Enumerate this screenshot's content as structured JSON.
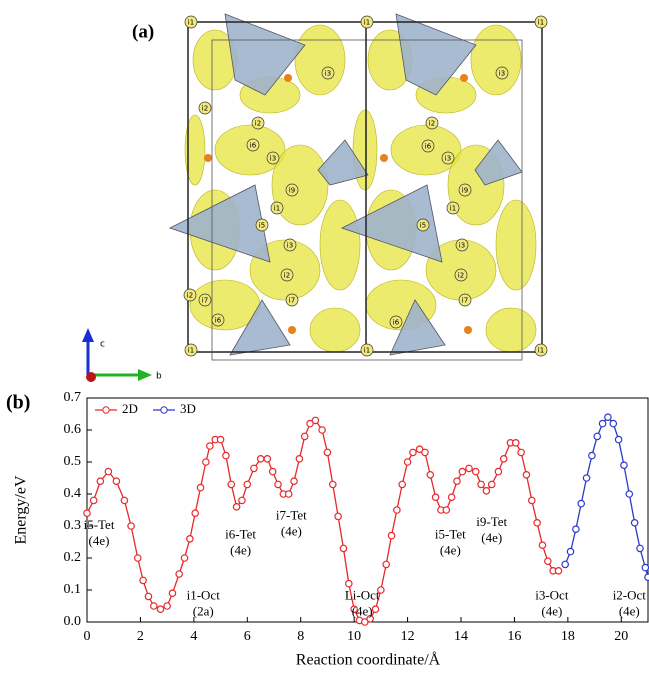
{
  "panel_a": {
    "label": "(a)",
    "axis_labels": [
      "c",
      "b"
    ],
    "atom_labels": [
      "i1",
      "i1",
      "i1",
      "i1",
      "i1",
      "i1",
      "i2",
      "i3",
      "i6",
      "i1",
      "i5",
      "i9",
      "i3",
      "i2",
      "i7",
      "i3",
      "i2",
      "i6",
      "i7",
      "i2",
      "i3",
      "i2",
      "i6",
      "i3",
      "i1",
      "i9",
      "i5",
      "i3",
      "i2",
      "i7",
      "i6"
    ]
  },
  "chart_data": {
    "type": "line",
    "panel_label": "(b)",
    "x_label": "Reaction coordinate/Å",
    "y_label": "Energy/eV",
    "xlim": [
      0,
      21
    ],
    "ylim": [
      0,
      0.7
    ],
    "xticks": [
      0,
      2,
      4,
      6,
      8,
      10,
      12,
      14,
      16,
      18,
      20
    ],
    "yticks": [
      {
        "value": 0,
        "label": "0.0"
      },
      0.1,
      0.2,
      0.3,
      0.4,
      0.5,
      0.6,
      0.7
    ],
    "legend": "upper left",
    "series": [
      {
        "name": "2D",
        "color": "#e8282b",
        "x": [
          0,
          0.25,
          0.5,
          0.8,
          1.1,
          1.4,
          1.65,
          1.9,
          2.1,
          2.3,
          2.5,
          2.75,
          3.0,
          3.2,
          3.45,
          3.65,
          3.85,
          4.05,
          4.25,
          4.45,
          4.6,
          4.8,
          5.0,
          5.2,
          5.4,
          5.6,
          5.8,
          6.0,
          6.25,
          6.5,
          6.75,
          6.95,
          7.15,
          7.35,
          7.55,
          7.75,
          7.95,
          8.15,
          8.35,
          8.55,
          8.8,
          9.0,
          9.2,
          9.4,
          9.6,
          9.8,
          10.0,
          10.2,
          10.4,
          10.6,
          10.8,
          11.0,
          11.2,
          11.4,
          11.6,
          11.8,
          12.0,
          12.2,
          12.45,
          12.65,
          12.85,
          13.05,
          13.25,
          13.45,
          13.65,
          13.85,
          14.05,
          14.3,
          14.55,
          14.75,
          14.95,
          15.15,
          15.4,
          15.6,
          15.85,
          16.05,
          16.25,
          16.45,
          16.65,
          16.85,
          17.05,
          17.25,
          17.45,
          17.65
        ],
        "values": [
          0.34,
          0.38,
          0.44,
          0.47,
          0.44,
          0.38,
          0.3,
          0.2,
          0.13,
          0.08,
          0.05,
          0.04,
          0.05,
          0.09,
          0.15,
          0.2,
          0.26,
          0.34,
          0.42,
          0.5,
          0.55,
          0.57,
          0.57,
          0.52,
          0.43,
          0.36,
          0.38,
          0.43,
          0.48,
          0.51,
          0.51,
          0.47,
          0.43,
          0.4,
          0.4,
          0.44,
          0.51,
          0.58,
          0.62,
          0.63,
          0.6,
          0.53,
          0.43,
          0.33,
          0.23,
          0.12,
          0.04,
          0.005,
          0,
          0.01,
          0.04,
          0.1,
          0.18,
          0.27,
          0.35,
          0.43,
          0.5,
          0.53,
          0.54,
          0.53,
          0.46,
          0.39,
          0.35,
          0.35,
          0.39,
          0.44,
          0.47,
          0.48,
          0.47,
          0.43,
          0.41,
          0.43,
          0.47,
          0.51,
          0.56,
          0.56,
          0.53,
          0.46,
          0.38,
          0.31,
          0.24,
          0.19,
          0.16,
          0.16
        ]
      },
      {
        "name": "3D",
        "color": "#2a3bc8",
        "x": [
          17.9,
          18.1,
          18.3,
          18.5,
          18.7,
          18.9,
          19.1,
          19.3,
          19.5,
          19.7,
          19.9,
          20.1,
          20.3,
          20.5,
          20.7,
          20.9,
          21.0
        ],
        "values": [
          0.18,
          0.22,
          0.29,
          0.37,
          0.45,
          0.52,
          0.58,
          0.62,
          0.64,
          0.62,
          0.57,
          0.49,
          0.4,
          0.31,
          0.23,
          0.17,
          0.14
        ]
      }
    ],
    "annotations": [
      [
        "i5-Tet",
        "(4e)"
      ],
      [
        "i1-Oct",
        "(2a)"
      ],
      [
        "i6-Tet",
        "(4e)"
      ],
      [
        "i7-Tet",
        "(4e)"
      ],
      [
        "Li-Oct",
        "(4e)"
      ],
      [
        "i5-Tet",
        "(4e)"
      ],
      [
        "i9-Tet",
        "(4e)"
      ],
      [
        "i3-Oct",
        "(4e)"
      ],
      [
        "i2-Oct",
        "(4e)"
      ]
    ]
  }
}
